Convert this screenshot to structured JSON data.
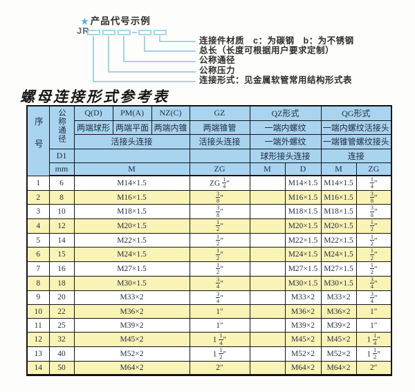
{
  "colors": {
    "header_blue": "#a9d4f0",
    "band_yellow": "#faf3b6",
    "border_black": "#111111",
    "diagram_cyan": "#9fd4e8",
    "star_cyan": "#3fb9dc"
  },
  "diagram": {
    "star": "★",
    "heading": "产品代号示例",
    "code_prefix": "JR",
    "labels": [
      "连接件材质　c：为碳钢　b：为不锈钢",
      "总长（长度可根据用户要求定制）",
      "公称通径",
      "公称压力",
      "连接形式：见金属软管常用结构形式表"
    ]
  },
  "table": {
    "title": "螺母连接形式参考表",
    "header": {
      "seq": "序号",
      "dn": "公称通径",
      "d1": "D1",
      "unit": "mm",
      "q": "Q(D)",
      "pm": "PM(A)",
      "nz": "NZ(C)",
      "gz": "GZ",
      "qz": "QZ形式",
      "qg": "QG形式",
      "q_desc": "两端球形",
      "pm_desc": "两端平面",
      "nz_desc": "两端内锥",
      "gz_desc": "两端锥管",
      "qz_desc1": "一端内螺纹",
      "qg_desc1": "一端内螺纹活接头",
      "union_conn": "活接头连接",
      "gz_conn": "活接头连接",
      "qz_desc2": "一端外螺纹",
      "qg_desc2": "一端锥管螺纹接头",
      "qz_conn": "球形接头连接",
      "qg_conn": "连接",
      "m": "M",
      "zg": "ZG",
      "qz_m": "M",
      "qz_d": "D",
      "qg_m": "M",
      "qg_zg": "ZG"
    },
    "rows": [
      {
        "no": "1",
        "dn": "6",
        "m": "M14×1.5",
        "gz": "ZG 1/4″",
        "qz_m": "",
        "qz_d": "M14×1.5",
        "qg_m": "M14×1.5",
        "qg_zg": "1/4″"
      },
      {
        "no": "2",
        "dn": "8",
        "m": "M16×1.5",
        "gz": "3/8″",
        "qz_m": "",
        "qz_d": "M16×1.5",
        "qg_m": "M16×1.5",
        "qg_zg": "3/8″"
      },
      {
        "no": "3",
        "dn": "10",
        "m": "M18×1.5",
        "gz": "3/8″",
        "qz_m": "",
        "qz_d": "M18×1.5",
        "qg_m": "M18×1.5",
        "qg_zg": "3/8″"
      },
      {
        "no": "4",
        "dn": "12",
        "m": "M20×1.5",
        "gz": "1/2″",
        "qz_m": "",
        "qz_d": "M20×1.5",
        "qg_m": "M20×1.5",
        "qg_zg": "1/2″"
      },
      {
        "no": "5",
        "dn": "14",
        "m": "M22×1.5",
        "gz": "1/2″",
        "qz_m": "",
        "qz_d": "M22×1.5",
        "qg_m": "M22×1.5",
        "qg_zg": "1/2″"
      },
      {
        "no": "6",
        "dn": "15",
        "m": "M24×1.5",
        "gz": "1/2″",
        "qz_m": "",
        "qz_d": "M24×1.5",
        "qg_m": "M24×1.5",
        "qg_zg": "1/2″"
      },
      {
        "no": "7",
        "dn": "16",
        "m": "M27×1.5",
        "gz": "1/2″",
        "qz_m": "",
        "qz_d": "M27×1.5",
        "qg_m": "M27×1.5",
        "qg_zg": "1/2″"
      },
      {
        "no": "8",
        "dn": "18",
        "m": "M30×1.5",
        "gz": "3/4″",
        "qz_m": "",
        "qz_d": "M30×1.5",
        "qg_m": "M30×1.5",
        "qg_zg": "3/4″"
      },
      {
        "no": "9",
        "dn": "20",
        "m": "M33×2",
        "gz": "3/4″",
        "qz_m": "",
        "qz_d": "M33×2",
        "qg_m": "M33×2",
        "qg_zg": "3/4″"
      },
      {
        "no": "10",
        "dn": "22",
        "m": "M36×2",
        "gz": "1″",
        "qz_m": "",
        "qz_d": "M36×2",
        "qg_m": "M36×2",
        "qg_zg": "1″"
      },
      {
        "no": "11",
        "dn": "25",
        "m": "M39×2",
        "gz": "1″",
        "qz_m": "",
        "qz_d": "M39×2",
        "qg_m": "M39×2",
        "qg_zg": "1″"
      },
      {
        "no": "12",
        "dn": "32",
        "m": "M45×2",
        "gz": "1 1/4″",
        "qz_m": "",
        "qz_d": "M45×2",
        "qg_m": "M45×2",
        "qg_zg": "1 1/4″"
      },
      {
        "no": "13",
        "dn": "40",
        "m": "M52×2",
        "gz": "1 1/2″",
        "qz_m": "",
        "qz_d": "M52×2",
        "qg_m": "M52×2",
        "qg_zg": "1 1/2″"
      },
      {
        "no": "14",
        "dn": "50",
        "m": "M64×2",
        "gz": "2″",
        "qz_m": "",
        "qz_d": "M64×2",
        "qg_m": "M64×2",
        "qg_zg": "2″"
      }
    ]
  }
}
